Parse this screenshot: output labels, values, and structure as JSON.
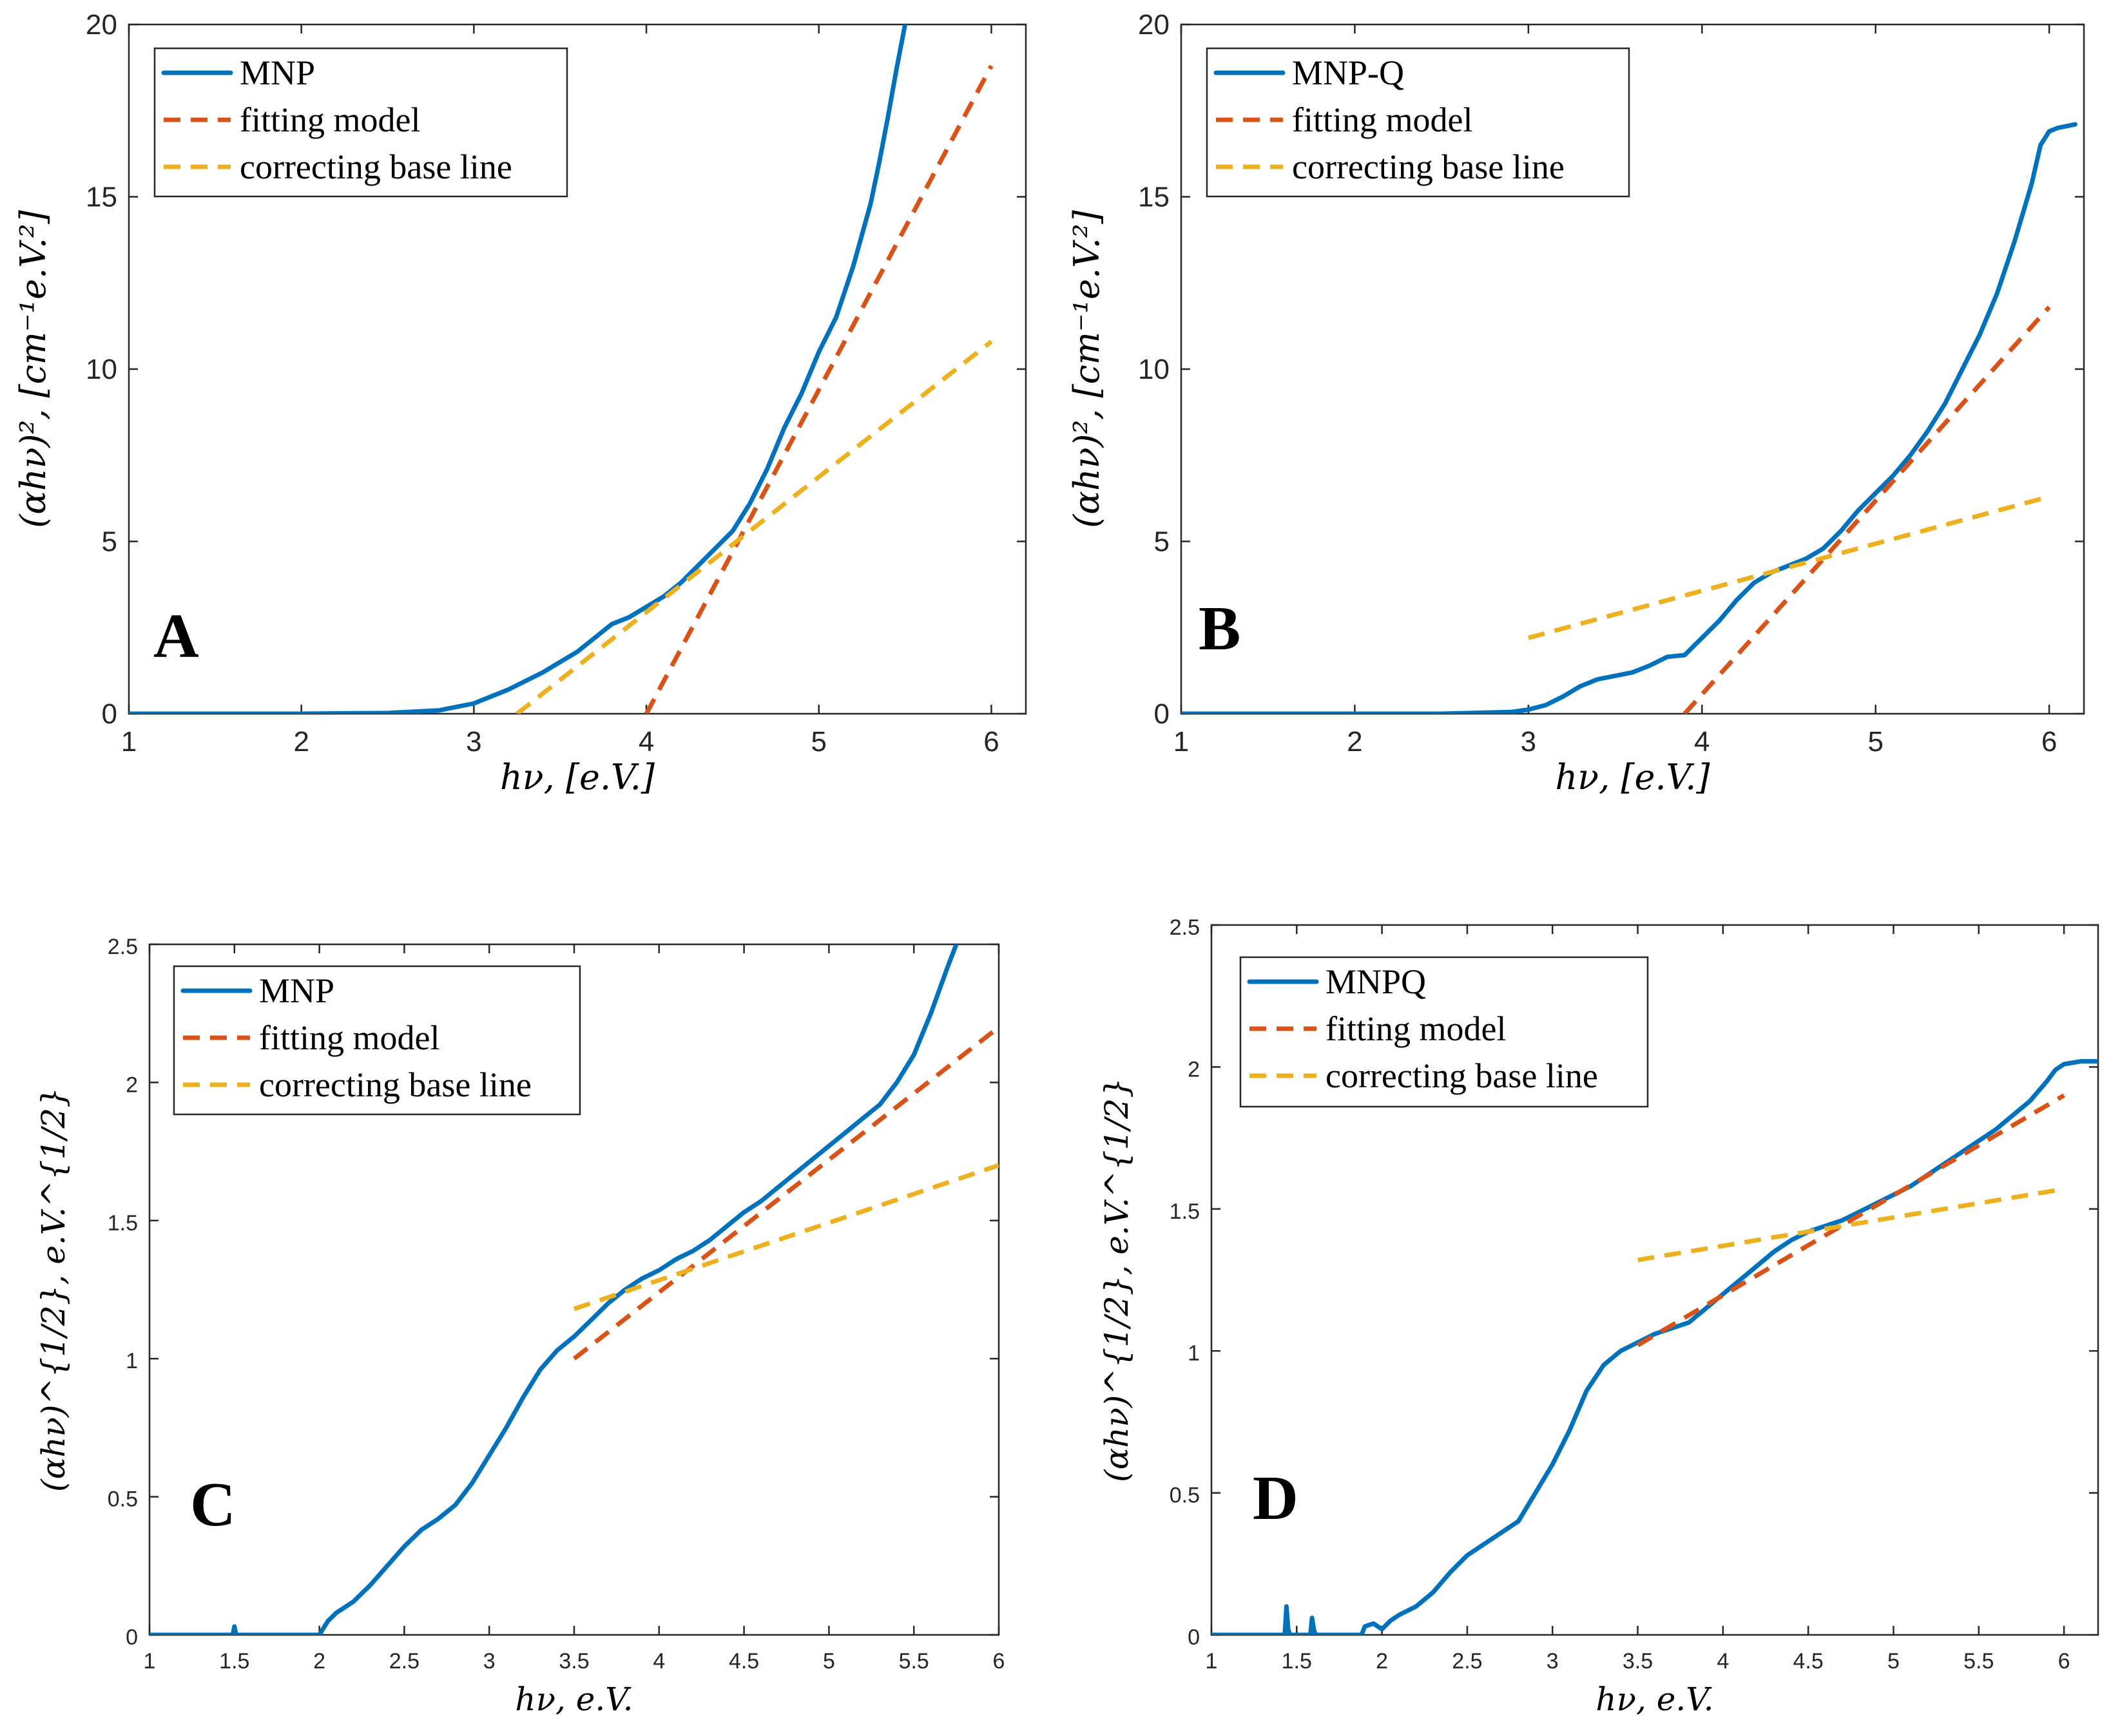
{
  "chart_data": [
    {
      "type": "line",
      "panel_label": "A",
      "xlabel": "hν, [e.V.]",
      "ylabel": "(αhν)², [cm⁻¹e.V.²]",
      "xlim": [
        1,
        6.2
      ],
      "ylim": [
        0,
        20
      ],
      "xticks": [
        1,
        2,
        3,
        4,
        5,
        6
      ],
      "yticks": [
        0,
        5,
        10,
        15,
        20
      ],
      "xtick_labels": [
        "1",
        "2",
        "3",
        "4",
        "5",
        "6"
      ],
      "ytick_labels": [
        "0",
        "5",
        "10",
        "15",
        "20"
      ],
      "legend": [
        "MNP",
        "fitting model",
        "correcting base line"
      ],
      "series": [
        {
          "name": "MNP",
          "style": "solid",
          "x": [
            1.0,
            2.0,
            2.5,
            2.8,
            3.0,
            3.2,
            3.4,
            3.5,
            3.6,
            3.7,
            3.8,
            3.9,
            4.0,
            4.1,
            4.2,
            4.3,
            4.4,
            4.5,
            4.6,
            4.7,
            4.8,
            4.9,
            5.0,
            5.1,
            5.2,
            5.3,
            5.35,
            5.4,
            5.45,
            5.5
          ],
          "y": [
            0,
            0,
            0.02,
            0.1,
            0.3,
            0.7,
            1.2,
            1.5,
            1.8,
            2.2,
            2.6,
            2.8,
            3.1,
            3.4,
            3.8,
            4.3,
            4.8,
            5.3,
            6.1,
            7.1,
            8.3,
            9.3,
            10.5,
            11.5,
            13.0,
            14.8,
            16.0,
            17.3,
            18.7,
            20.0
          ]
        },
        {
          "name": "fitting model",
          "style": "dash",
          "x": [
            4.0,
            6.0
          ],
          "y": [
            0,
            18.8
          ]
        },
        {
          "name": "correcting base line",
          "style": "dash",
          "x": [
            3.25,
            6.0
          ],
          "y": [
            0,
            10.8
          ]
        }
      ]
    },
    {
      "type": "line",
      "panel_label": "B",
      "xlabel": "hν, [e.V.]",
      "ylabel": "(αhν)², [cm⁻¹e.V.²]",
      "xlim": [
        1,
        6.2
      ],
      "ylim": [
        0,
        20
      ],
      "xticks": [
        1,
        2,
        3,
        4,
        5,
        6
      ],
      "yticks": [
        0,
        5,
        10,
        15,
        20
      ],
      "xtick_labels": [
        "1",
        "2",
        "3",
        "4",
        "5",
        "6"
      ],
      "ytick_labels": [
        "0",
        "5",
        "10",
        "15",
        "20"
      ],
      "legend": [
        "MNP-Q",
        "fitting model",
        "correcting base line"
      ],
      "series": [
        {
          "name": "MNP-Q",
          "style": "solid",
          "x": [
            1.0,
            2.5,
            2.9,
            3.0,
            3.1,
            3.2,
            3.3,
            3.4,
            3.5,
            3.6,
            3.7,
            3.8,
            3.9,
            4.0,
            4.1,
            4.2,
            4.3,
            4.4,
            4.5,
            4.6,
            4.7,
            4.8,
            4.9,
            5.0,
            5.1,
            5.2,
            5.3,
            5.4,
            5.5,
            5.6,
            5.7,
            5.8,
            5.9,
            5.95,
            6.0,
            6.05,
            6.1,
            6.15
          ],
          "y": [
            0,
            0,
            0.05,
            0.12,
            0.25,
            0.5,
            0.8,
            1.0,
            1.1,
            1.2,
            1.4,
            1.65,
            1.7,
            2.2,
            2.7,
            3.3,
            3.8,
            4.1,
            4.3,
            4.5,
            4.8,
            5.3,
            5.9,
            6.4,
            6.9,
            7.5,
            8.2,
            9.0,
            10.0,
            11.0,
            12.2,
            13.7,
            15.4,
            16.5,
            16.9,
            17.0,
            17.05,
            17.1
          ]
        },
        {
          "name": "fitting model",
          "style": "dash",
          "x": [
            3.9,
            6.0
          ],
          "y": [
            0,
            11.8
          ]
        },
        {
          "name": "correcting base line",
          "style": "dash",
          "x": [
            3.0,
            6.0
          ],
          "y": [
            2.2,
            6.3
          ]
        }
      ]
    },
    {
      "type": "line",
      "panel_label": "C",
      "xlabel": "hν, e.V.",
      "ylabel": "(αhν)^{1/2}, e.V.^{1/2}",
      "xlim": [
        1,
        6
      ],
      "ylim": [
        0,
        2.5
      ],
      "xticks": [
        1,
        1.5,
        2,
        2.5,
        3,
        3.5,
        4,
        4.5,
        5,
        5.5,
        6
      ],
      "yticks": [
        0,
        0.5,
        1,
        1.5,
        2,
        2.5
      ],
      "xtick_labels": [
        "1",
        "1.5",
        "2",
        "2.5",
        "3",
        "3.5",
        "4",
        "4.5",
        "5",
        "5.5",
        "6"
      ],
      "ytick_labels": [
        "0",
        "0.5",
        "1",
        "1.5",
        "2",
        "2.5"
      ],
      "legend": [
        "MNP",
        "fitting model",
        "correcting base line"
      ],
      "series": [
        {
          "name": "MNP",
          "style": "solid",
          "x": [
            1.0,
            1.49,
            1.5,
            1.51,
            2.0,
            2.02,
            2.05,
            2.1,
            2.2,
            2.3,
            2.4,
            2.5,
            2.6,
            2.7,
            2.8,
            2.9,
            3.0,
            3.1,
            3.2,
            3.3,
            3.4,
            3.5,
            3.6,
            3.7,
            3.8,
            3.9,
            4.0,
            4.1,
            4.2,
            4.3,
            4.4,
            4.5,
            4.6,
            4.7,
            4.8,
            4.9,
            5.0,
            5.1,
            5.2,
            5.3,
            5.4,
            5.5,
            5.6,
            5.7,
            5.75
          ],
          "y": [
            0,
            0,
            0.03,
            0,
            0,
            0.02,
            0.05,
            0.08,
            0.12,
            0.18,
            0.25,
            0.32,
            0.38,
            0.42,
            0.47,
            0.55,
            0.65,
            0.75,
            0.86,
            0.96,
            1.03,
            1.08,
            1.14,
            1.2,
            1.25,
            1.29,
            1.32,
            1.36,
            1.39,
            1.43,
            1.48,
            1.53,
            1.57,
            1.62,
            1.67,
            1.72,
            1.77,
            1.82,
            1.87,
            1.92,
            2.0,
            2.1,
            2.25,
            2.42,
            2.5
          ]
        },
        {
          "name": "fitting model",
          "style": "dash",
          "x": [
            3.5,
            6.0
          ],
          "y": [
            1.0,
            2.2
          ]
        },
        {
          "name": "correcting base line",
          "style": "dash",
          "x": [
            3.5,
            6.0
          ],
          "y": [
            1.18,
            1.7
          ]
        }
      ]
    },
    {
      "type": "line",
      "panel_label": "D",
      "xlabel": "hν, e.V.",
      "ylabel": "(αhν)^{1/2}, e.V.^{1/2}",
      "xlim": [
        1,
        6.2
      ],
      "ylim": [
        0,
        2.5
      ],
      "xticks": [
        1,
        1.5,
        2,
        2.5,
        3,
        3.5,
        4,
        4.5,
        5,
        5.5,
        6
      ],
      "yticks": [
        0,
        0.5,
        1,
        1.5,
        2,
        2.5
      ],
      "xtick_labels": [
        "1",
        "1.5",
        "2",
        "2.5",
        "3",
        "3.5",
        "4",
        "4.5",
        "5",
        "5.5",
        "6"
      ],
      "ytick_labels": [
        "0",
        "0.5",
        "1",
        "1.5",
        "2",
        "2.5"
      ],
      "legend": [
        "MNPQ",
        "fitting model",
        "correcting base line"
      ],
      "series": [
        {
          "name": "MNPQ",
          "style": "solid",
          "x": [
            1.0,
            1.43,
            1.44,
            1.45,
            1.46,
            1.58,
            1.59,
            1.6,
            1.61,
            1.88,
            1.9,
            1.95,
            2.0,
            2.05,
            2.1,
            2.2,
            2.3,
            2.4,
            2.5,
            2.6,
            2.7,
            2.8,
            2.9,
            3.0,
            3.1,
            3.2,
            3.3,
            3.4,
            3.5,
            3.6,
            3.7,
            3.8,
            3.9,
            4.0,
            4.1,
            4.2,
            4.3,
            4.4,
            4.5,
            4.6,
            4.7,
            4.8,
            4.9,
            5.0,
            5.1,
            5.2,
            5.3,
            5.4,
            5.5,
            5.6,
            5.7,
            5.8,
            5.9,
            5.95,
            6.0,
            6.1,
            6.2
          ],
          "y": [
            0,
            0,
            0.1,
            0.02,
            0,
            0,
            0.06,
            0.02,
            0,
            0,
            0.03,
            0.04,
            0.02,
            0.05,
            0.07,
            0.1,
            0.15,
            0.22,
            0.28,
            0.32,
            0.36,
            0.4,
            0.5,
            0.6,
            0.72,
            0.86,
            0.95,
            1.0,
            1.03,
            1.06,
            1.08,
            1.1,
            1.15,
            1.2,
            1.25,
            1.3,
            1.35,
            1.39,
            1.42,
            1.44,
            1.46,
            1.49,
            1.52,
            1.55,
            1.58,
            1.62,
            1.66,
            1.7,
            1.74,
            1.78,
            1.83,
            1.88,
            1.95,
            1.99,
            2.01,
            2.02,
            2.02
          ]
        },
        {
          "name": "fitting model",
          "style": "dash",
          "x": [
            3.5,
            6.0
          ],
          "y": [
            1.02,
            1.9
          ]
        },
        {
          "name": "correcting base line",
          "style": "dash",
          "x": [
            3.5,
            6.0
          ],
          "y": [
            1.32,
            1.57
          ]
        }
      ]
    }
  ]
}
